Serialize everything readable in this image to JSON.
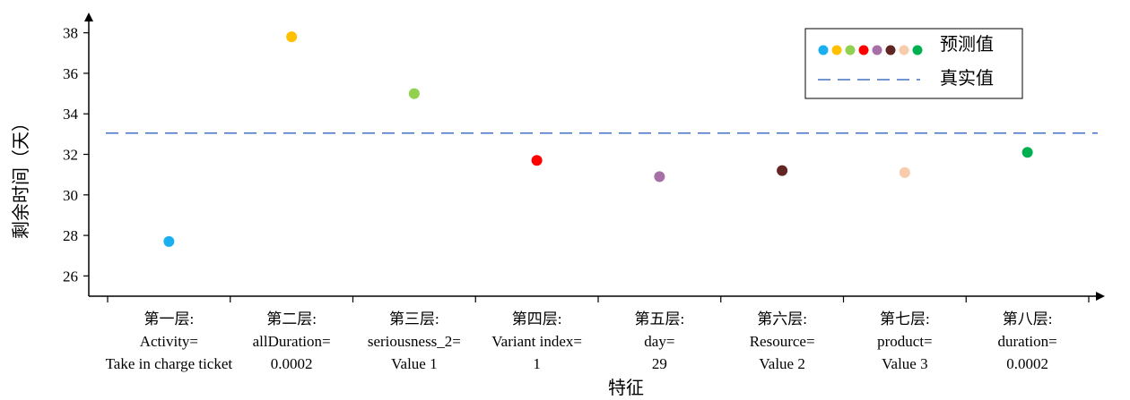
{
  "chart_data": {
    "type": "scatter",
    "xlabel": "特征",
    "ylabel": "剩余时间（天）",
    "ylim": [
      25,
      39
    ],
    "yticks": [
      26,
      28,
      30,
      32,
      34,
      36,
      38
    ],
    "grid": false,
    "legend": {
      "placement": "top-right",
      "entries": [
        "预测值",
        "真实值"
      ]
    },
    "categories": [
      {
        "lines": [
          "第一层:",
          "Activity=",
          "Take in charge ticket"
        ]
      },
      {
        "lines": [
          "第二层:",
          "allDuration=",
          "0.0002"
        ]
      },
      {
        "lines": [
          "第三层:",
          "seriousness_2=",
          "Value 1"
        ]
      },
      {
        "lines": [
          "第四层:",
          "Variant index=",
          "1"
        ]
      },
      {
        "lines": [
          "第五层:",
          "day=",
          "29"
        ]
      },
      {
        "lines": [
          "第六层:",
          "Resource=",
          "Value 2"
        ]
      },
      {
        "lines": [
          "第七层:",
          "product=",
          "Value 3"
        ]
      },
      {
        "lines": [
          "第八层:",
          "duration=",
          "0.0002"
        ]
      }
    ],
    "series": [
      {
        "name": "预测值",
        "type": "scatter",
        "values": [
          27.7,
          37.8,
          35.0,
          31.7,
          30.9,
          31.2,
          31.1,
          32.1
        ],
        "colors": [
          "#1AAFF0",
          "#FFC000",
          "#92D050",
          "#FF0000",
          "#A66FA6",
          "#632523",
          "#F8CBAD",
          "#00B050"
        ]
      },
      {
        "name": "真实值",
        "type": "line",
        "style": "dashed",
        "color": "#4472C4",
        "value": 33.05
      }
    ]
  }
}
